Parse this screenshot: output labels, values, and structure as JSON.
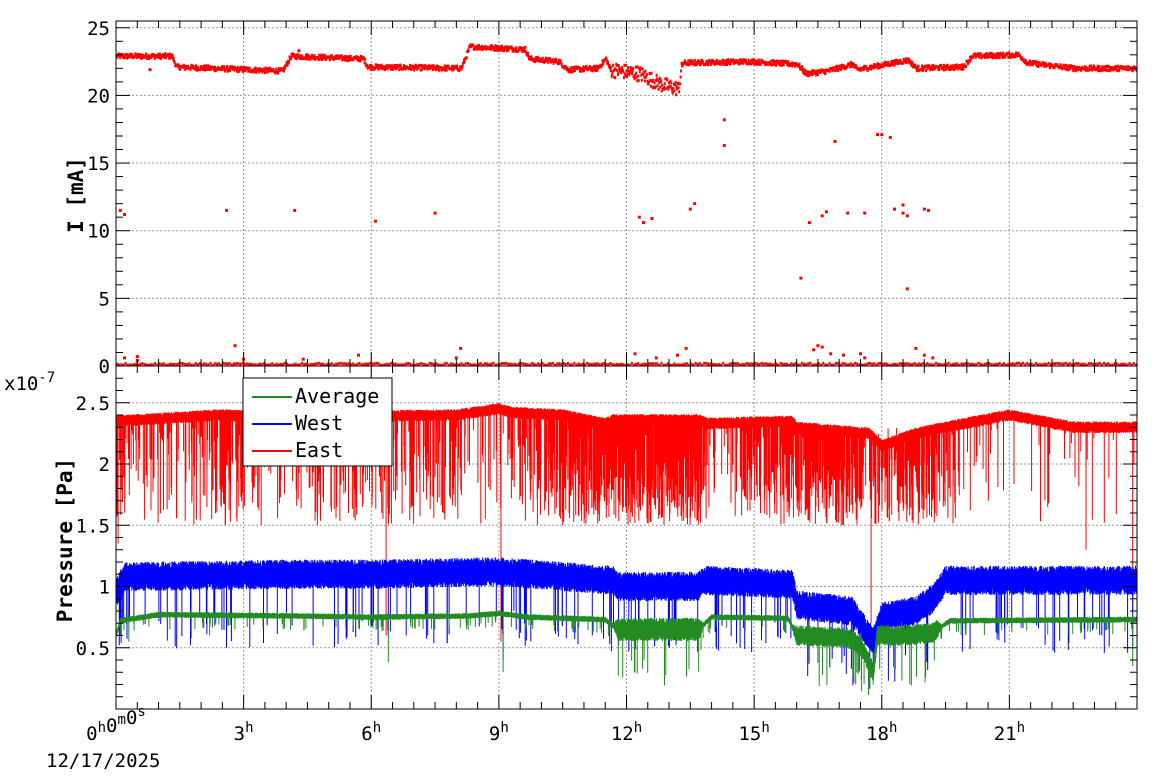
{
  "chart_data": [
    {
      "type": "scatter",
      "ylabel": "I [mA]",
      "ylim": [
        0,
        25.5
      ],
      "yticks": [
        0,
        5,
        10,
        15,
        20,
        25
      ],
      "xlim_hours": [
        0,
        24
      ],
      "grid": true,
      "series": [
        {
          "color": "#ff0000",
          "baseline": [
            [
              0,
              22.9
            ],
            [
              1.3,
              22.9
            ],
            [
              1.4,
              22.1
            ],
            [
              3.9,
              21.8
            ],
            [
              4.1,
              22.9
            ],
            [
              5.8,
              22.7
            ],
            [
              5.9,
              22.1
            ],
            [
              8.1,
              22.0
            ],
            [
              8.3,
              23.6
            ],
            [
              9.6,
              23.4
            ],
            [
              9.7,
              22.7
            ],
            [
              10.4,
              22.5
            ],
            [
              10.6,
              21.9
            ],
            [
              11.3,
              22.0
            ],
            [
              11.5,
              22.7
            ],
            [
              11.6,
              21.9
            ],
            [
              12.3,
              21.6
            ],
            [
              12.8,
              20.8
            ],
            [
              13.2,
              20.5
            ],
            [
              13.3,
              22.4
            ],
            [
              14.9,
              22.5
            ],
            [
              16.0,
              22.3
            ],
            [
              16.2,
              21.6
            ],
            [
              16.7,
              21.8
            ],
            [
              17.3,
              22.3
            ],
            [
              17.4,
              21.9
            ],
            [
              18.6,
              22.6
            ],
            [
              18.8,
              22.0
            ],
            [
              19.9,
              22.1
            ],
            [
              20.1,
              22.9
            ],
            [
              21.2,
              23.0
            ],
            [
              21.4,
              22.4
            ],
            [
              22.5,
              22.0
            ],
            [
              24,
              22.0
            ]
          ],
          "outliers": [
            [
              0.1,
              11.5
            ],
            [
              0.2,
              11.2
            ],
            [
              0.8,
              21.9
            ],
            [
              2.6,
              11.5
            ],
            [
              2.8,
              1.5
            ],
            [
              4.2,
              11.5
            ],
            [
              4.3,
              23.3
            ],
            [
              6.1,
              10.7
            ],
            [
              7.5,
              11.3
            ],
            [
              8.1,
              1.3
            ],
            [
              12.3,
              11.0
            ],
            [
              12.4,
              10.6
            ],
            [
              12.6,
              10.9
            ],
            [
              13.5,
              11.6
            ],
            [
              13.6,
              12.0
            ],
            [
              14.3,
              18.2
            ],
            [
              14.3,
              16.3
            ],
            [
              16.1,
              6.5
            ],
            [
              16.3,
              10.6
            ],
            [
              16.6,
              11.1
            ],
            [
              16.7,
              11.4
            ],
            [
              16.9,
              16.6
            ],
            [
              17.2,
              11.3
            ],
            [
              17.6,
              11.3
            ],
            [
              17.9,
              17.1
            ],
            [
              18.0,
              17.1
            ],
            [
              18.2,
              16.9
            ],
            [
              18.3,
              11.6
            ],
            [
              18.5,
              11.3
            ],
            [
              18.5,
              11.9
            ],
            [
              18.6,
              11.1
            ],
            [
              18.6,
              5.7
            ],
            [
              19.0,
              11.6
            ],
            [
              19.1,
              11.5
            ],
            [
              0.2,
              0.6
            ],
            [
              0.5,
              0.7
            ],
            [
              0.5,
              0.4
            ],
            [
              3.0,
              0.5
            ],
            [
              4.4,
              0.5
            ],
            [
              5.7,
              0.8
            ],
            [
              8.0,
              0.6
            ],
            [
              12.2,
              0.9
            ],
            [
              12.7,
              0.6
            ],
            [
              13.2,
              0.8
            ],
            [
              13.4,
              1.3
            ],
            [
              16.4,
              1.2
            ],
            [
              16.5,
              1.5
            ],
            [
              16.6,
              1.4
            ],
            [
              16.8,
              0.9
            ],
            [
              17.1,
              0.8
            ],
            [
              17.5,
              0.9
            ],
            [
              17.6,
              0.6
            ],
            [
              18.8,
              1.3
            ],
            [
              19.0,
              0.8
            ],
            [
              19.2,
              0.6
            ]
          ]
        }
      ]
    },
    {
      "type": "line",
      "ylabel": "Pressure [Pa]",
      "y_multiplier": "x10",
      "y_exponent": "-7",
      "ylim": [
        0.0,
        2.8
      ],
      "yticks": [
        {
          "v": 0.5,
          "label": "0.5"
        },
        {
          "v": 1.0,
          "label": "1"
        },
        {
          "v": 1.5,
          "label": "1.5"
        },
        {
          "v": 2.0,
          "label": "2"
        },
        {
          "v": 2.5,
          "label": "2.5"
        }
      ],
      "xlim_hours": [
        0,
        24
      ],
      "xticks": [
        {
          "h": 0,
          "num": "0",
          "sup": "h",
          "num2": "0",
          "sup2": "m",
          "num3": "0",
          "sup3": "s"
        },
        {
          "h": 3,
          "num": "3",
          "sup": "h"
        },
        {
          "h": 6,
          "num": "6",
          "sup": "h"
        },
        {
          "h": 9,
          "num": "9",
          "sup": "h"
        },
        {
          "h": 12,
          "num": "12",
          "sup": "h"
        },
        {
          "h": 15,
          "num": "15",
          "sup": "h"
        },
        {
          "h": 18,
          "num": "18",
          "sup": "h"
        },
        {
          "h": 21,
          "num": "21",
          "sup": "h"
        }
      ],
      "xdate": "12/17/2025",
      "grid": true,
      "legend_position": "top-left",
      "series": [
        {
          "name": "Average",
          "color": "#228b22",
          "base": [
            [
              0,
              0.6
            ],
            [
              0.1,
              0.72
            ],
            [
              1,
              0.77
            ],
            [
              4,
              0.76
            ],
            [
              6.1,
              0.75
            ],
            [
              8.3,
              0.76
            ],
            [
              9,
              0.78
            ],
            [
              9.7,
              0.75
            ],
            [
              11.5,
              0.73
            ],
            [
              11.8,
              0.65
            ],
            [
              13.7,
              0.65
            ],
            [
              14,
              0.75
            ],
            [
              15.8,
              0.74
            ],
            [
              16.0,
              0.6
            ],
            [
              17.2,
              0.58
            ],
            [
              17.5,
              0.52
            ],
            [
              17.8,
              0.3
            ],
            [
              17.9,
              0.6
            ],
            [
              18.5,
              0.6
            ],
            [
              19.2,
              0.62
            ],
            [
              19.6,
              0.72
            ],
            [
              24,
              0.73
            ]
          ],
          "noise": [
            [
              0,
              0.02
            ],
            [
              11.7,
              0.02
            ],
            [
              11.8,
              0.08
            ],
            [
              13.7,
              0.08
            ],
            [
              13.8,
              0.02
            ],
            [
              15.9,
              0.02
            ],
            [
              16.0,
              0.07
            ],
            [
              19.3,
              0.07
            ],
            [
              19.4,
              0.02
            ],
            [
              24,
              0.02
            ]
          ],
          "dips": [
            [
              0.0,
              0.5
            ],
            [
              0.3,
              0.55
            ],
            [
              2.2,
              0.6
            ],
            [
              6.4,
              0.38
            ],
            [
              9.1,
              0.3
            ],
            [
              17.8,
              0.2
            ],
            [
              18.2,
              0.5
            ],
            [
              23.9,
              0.35
            ]
          ]
        },
        {
          "name": "West",
          "color": "#0000ff",
          "base": [
            [
              0,
              0.95
            ],
            [
              0.2,
              1.08
            ],
            [
              4,
              1.1
            ],
            [
              6,
              1.1
            ],
            [
              9,
              1.12
            ],
            [
              11.7,
              1.05
            ],
            [
              11.8,
              1.0
            ],
            [
              13.7,
              1.0
            ],
            [
              13.8,
              1.05
            ],
            [
              15.9,
              1.02
            ],
            [
              16.0,
              0.85
            ],
            [
              17.3,
              0.8
            ],
            [
              17.8,
              0.55
            ],
            [
              18.0,
              0.75
            ],
            [
              18.8,
              0.8
            ],
            [
              19.2,
              0.9
            ],
            [
              19.5,
              1.05
            ],
            [
              24,
              1.05
            ]
          ],
          "noise": [
            [
              0,
              0.1
            ],
            [
              24,
              0.1
            ]
          ],
          "dips": [
            [
              0.1,
              0.6
            ],
            [
              0.3,
              0.7
            ],
            [
              2.3,
              0.75
            ],
            [
              6.4,
              0.6
            ],
            [
              9.1,
              0.4
            ],
            [
              12.5,
              0.7
            ],
            [
              16.5,
              0.6
            ],
            [
              17.8,
              0.35
            ],
            [
              23.9,
              0.5
            ]
          ]
        },
        {
          "name": "East",
          "color": "#ff0000",
          "base": [
            [
              0,
              2.35
            ],
            [
              2.4,
              2.4
            ],
            [
              4,
              2.38
            ],
            [
              8,
              2.4
            ],
            [
              9,
              2.45
            ],
            [
              9.3,
              2.42
            ],
            [
              10.5,
              2.4
            ],
            [
              11.5,
              2.33
            ],
            [
              11.7,
              2.36
            ],
            [
              13.7,
              2.36
            ],
            [
              13.9,
              2.33
            ],
            [
              15.9,
              2.35
            ],
            [
              16.0,
              2.3
            ],
            [
              17.7,
              2.25
            ],
            [
              18.0,
              2.15
            ],
            [
              18.8,
              2.25
            ],
            [
              19.5,
              2.3
            ],
            [
              21,
              2.4
            ],
            [
              22.5,
              2.3
            ],
            [
              24,
              2.3
            ]
          ],
          "noise": [
            [
              0,
              0.04
            ],
            [
              24,
              0.04
            ]
          ],
          "dropouts": [
            [
              0,
              0.55
            ],
            [
              0.5,
              0.15
            ],
            [
              2.4,
              0.35
            ],
            [
              4.0,
              0.15
            ],
            [
              4.5,
              0.3
            ],
            [
              8.0,
              0.3
            ],
            [
              8.4,
              0.05
            ],
            [
              11.7,
              0.75
            ],
            [
              13.7,
              0.75
            ],
            [
              14.0,
              0.05
            ],
            [
              16.0,
              0.75
            ],
            [
              17.3,
              0.75
            ],
            [
              17.6,
              0.35
            ],
            [
              18.4,
              0.6
            ],
            [
              18.9,
              0.6
            ],
            [
              19.3,
              0.4
            ],
            [
              20.0,
              0.05
            ],
            [
              24,
              0.05
            ]
          ],
          "dips": [
            [
              0.05,
              1.35
            ],
            [
              6.35,
              0.6
            ],
            [
              9.05,
              0.55
            ],
            [
              10.5,
              1.5
            ],
            [
              12.0,
              1.6
            ],
            [
              17.75,
              0.7
            ],
            [
              18.1,
              1.9
            ],
            [
              22.8,
              1.3
            ],
            [
              23.9,
              0.8
            ]
          ]
        }
      ]
    }
  ]
}
